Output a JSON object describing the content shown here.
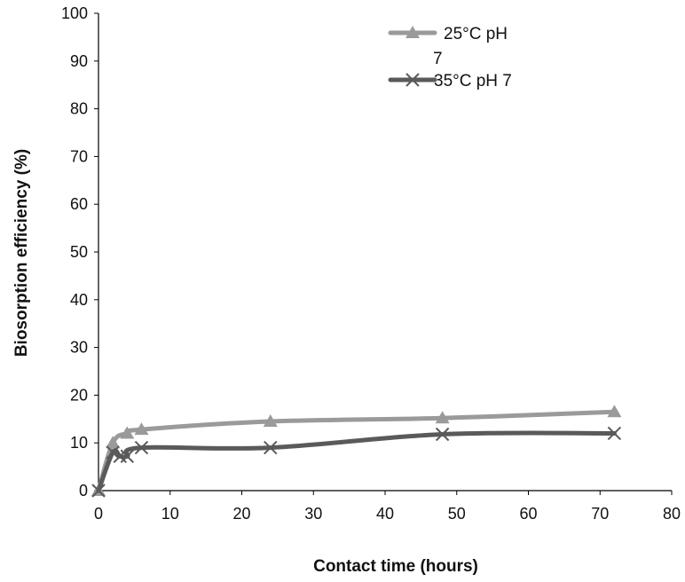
{
  "chart_data": {
    "type": "line",
    "xlabel": "Contact time (hours)",
    "ylabel": "Biosorption efficiency (%)",
    "xlim": [
      0,
      80
    ],
    "ylim": [
      0,
      100
    ],
    "xticks": [
      0,
      10,
      20,
      30,
      40,
      50,
      60,
      70,
      80
    ],
    "yticks": [
      0,
      10,
      20,
      30,
      40,
      50,
      60,
      70,
      80,
      90,
      100
    ],
    "grid": false,
    "legend_position": "top-right",
    "series": [
      {
        "name": "25°C pH 7",
        "legend_lines": [
          "25°C pH",
          "7"
        ],
        "marker": "triangle",
        "color": "#9a9a9a",
        "x": [
          0,
          2,
          4,
          6,
          24,
          48,
          72
        ],
        "y": [
          0,
          10,
          12,
          12.8,
          14.5,
          15.2,
          16.5
        ]
      },
      {
        "name": "35°C pH 7",
        "legend_lines": [
          "35°C pH 7"
        ],
        "marker": "x",
        "color": "#5a5a5a",
        "x": [
          0,
          2,
          3,
          4,
          6,
          24,
          48,
          72
        ],
        "y": [
          0,
          8,
          7.2,
          7.2,
          9,
          9,
          11.8,
          12
        ]
      }
    ]
  }
}
